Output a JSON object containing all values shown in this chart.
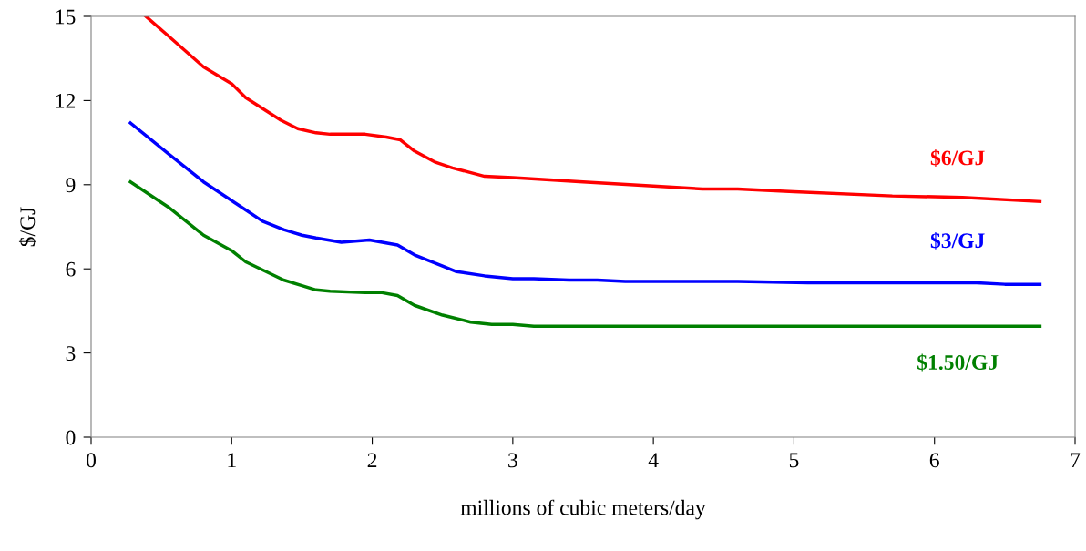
{
  "chart_data": {
    "type": "line",
    "xlabel": "millions of cubic meters/day",
    "ylabel": "$/GJ",
    "xlim": [
      0,
      7
    ],
    "xticks": [
      0,
      1,
      2,
      3,
      4,
      5,
      6,
      7
    ],
    "ylim": [
      0,
      15
    ],
    "yticks": [
      0,
      3,
      6,
      9,
      12,
      15
    ],
    "grid": false,
    "legend": false,
    "marker": "none",
    "line_style": "solid",
    "series": [
      {
        "name": "$6/GJ",
        "color": "#ff0000",
        "x": [
          0.39,
          0.55,
          0.8,
          1.0,
          1.1,
          1.35,
          1.47,
          1.6,
          1.7,
          1.95,
          2.1,
          2.2,
          2.3,
          2.45,
          2.57,
          2.8,
          3.0,
          3.5,
          4.0,
          4.35,
          4.6,
          5.0,
          5.7,
          6.2,
          6.75
        ],
        "values": [
          15,
          14.3,
          13.2,
          12.6,
          12.1,
          11.3,
          11.0,
          10.85,
          10.8,
          10.8,
          10.7,
          10.6,
          10.2,
          9.8,
          9.6,
          9.3,
          9.25,
          9.1,
          8.95,
          8.85,
          8.85,
          8.75,
          8.6,
          8.55,
          8.4
        ]
      },
      {
        "name": "$3/GJ",
        "color": "#0000ff",
        "x": [
          0.28,
          0.55,
          0.8,
          1.1,
          1.22,
          1.37,
          1.5,
          1.6,
          1.78,
          1.98,
          2.18,
          2.3,
          2.5,
          2.6,
          2.8,
          3.0,
          3.15,
          3.4,
          3.6,
          3.8,
          4.6,
          5.1,
          6.3,
          6.5,
          6.75
        ],
        "values": [
          11.2,
          10.1,
          9.1,
          8.1,
          7.7,
          7.4,
          7.2,
          7.1,
          6.95,
          7.03,
          6.85,
          6.5,
          6.1,
          5.9,
          5.75,
          5.65,
          5.65,
          5.6,
          5.6,
          5.55,
          5.55,
          5.5,
          5.5,
          5.45,
          5.45
        ]
      },
      {
        "name": "$1.50/GJ",
        "color": "#008000",
        "x": [
          0.28,
          0.55,
          0.8,
          1.0,
          1.1,
          1.37,
          1.5,
          1.6,
          1.7,
          1.95,
          2.07,
          2.18,
          2.3,
          2.5,
          2.7,
          2.85,
          3.0,
          3.15,
          6.75
        ],
        "values": [
          9.1,
          8.2,
          7.2,
          6.65,
          6.25,
          5.6,
          5.4,
          5.25,
          5.2,
          5.15,
          5.15,
          5.05,
          4.7,
          4.35,
          4.1,
          4.02,
          4.02,
          3.95,
          3.95
        ]
      }
    ]
  }
}
